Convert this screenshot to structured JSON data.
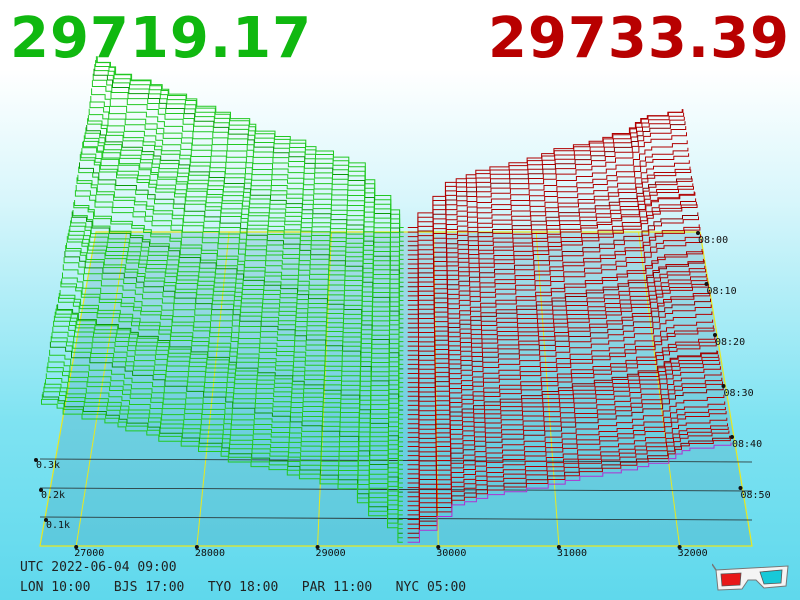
{
  "header": {
    "bid_price": "29719.17",
    "ask_price": "29733.39",
    "bid_color": "#10b810",
    "ask_color": "#b80000"
  },
  "chart_data": {
    "type": "area",
    "description_of_axes": "3D order book depth surface",
    "x_axis": {
      "label": "",
      "ticks": [
        "27000",
        "28000",
        "29000",
        "30000",
        "31000",
        "32000"
      ],
      "range": [
        26700,
        32600
      ]
    },
    "z_axis": {
      "ticks": [
        "0.1k",
        "0.2k",
        "0.3k"
      ],
      "range": [
        0,
        0.35
      ]
    },
    "time_axis": {
      "ticks": [
        "08:00",
        "08:10",
        "08:20",
        "08:30",
        "08:40",
        "08:50"
      ]
    },
    "series": [
      {
        "name": "",
        "side": "bid",
        "color": "#14c814"
      },
      {
        "name": "",
        "side": "ask",
        "color": "#b80000"
      }
    ],
    "mid_price": 29726
  },
  "footer": {
    "utc": "UTC 2022-06-04 09:00",
    "cities": "LON 10:00   BJS 17:00   TYO 18:00   PAR 11:00   NYC 05:00"
  },
  "icons": {
    "glasses": "3d-glasses-icon"
  }
}
